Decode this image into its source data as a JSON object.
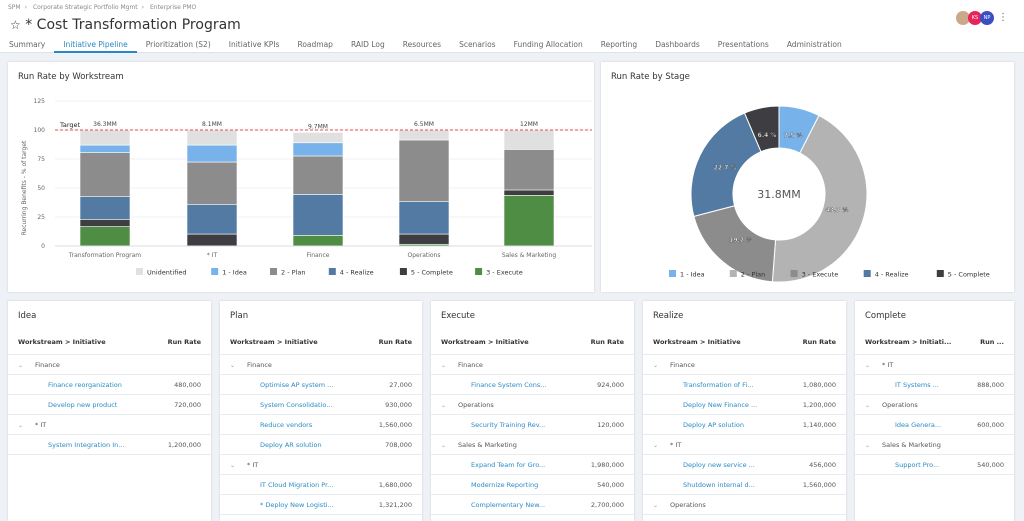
{
  "breadcrumb": [
    "SPM",
    "Corporate Strategic Portfolio Mgmt",
    "Enterprise PMO"
  ],
  "title": "* Cost Transformation Program",
  "tabs": [
    "Summary",
    "Initiative Pipeline",
    "Prioritization (S2)",
    "Initiative KPIs",
    "Roadmap",
    "RAID Log",
    "Resources",
    "Scenarios",
    "Funding Allocation",
    "Reporting",
    "Dashboards",
    "Presentations",
    "Administration"
  ],
  "active_tab": "Initiative Pipeline",
  "avatars": [
    {
      "label": "",
      "color": "#c9a98a"
    },
    {
      "label": "KS",
      "color": "#e8235a"
    },
    {
      "label": "NP",
      "color": "#3b4fc4"
    }
  ],
  "colors": {
    "Unidentified": "#e0e0e0",
    "1 - Idea": "#77b3ea",
    "2 - Plan": "#b3b3b3",
    "2 - Plan (bar)": "#8c8c8c",
    "3 - Execute": "#8c8c8c",
    "3 - Execute (bar)": "#4f8c44",
    "4 - Realize": "#537aa3",
    "5 - Complete": "#3d3d42",
    "target": "#e84c4c",
    "accent": "#2a86c4"
  },
  "chart_data": [
    {
      "type": "bar",
      "stacked": true,
      "title": "Run Rate by Workstream",
      "ylabel": "Recurring Benefits - % of target",
      "ylim": [
        0,
        125
      ],
      "yticks": [
        0,
        25,
        50,
        75,
        100,
        125
      ],
      "grid": true,
      "legend_position": "bottom",
      "target": {
        "label": "Target",
        "value": 100
      },
      "categories": [
        "Transformation Program",
        "* IT",
        "Finance",
        "Operations",
        "Sales & Marketing"
      ],
      "totals": [
        "36.3MM",
        "8.1MM",
        "9.7MM",
        "6.5MM",
        "12MM"
      ],
      "series": [
        {
          "name": "3 - Execute",
          "values": [
            16.7,
            0,
            9.2,
            1.5,
            43.7
          ]
        },
        {
          "name": "5 - Complete",
          "values": [
            6.3,
            10.3,
            0,
            8.8,
            4.6
          ]
        },
        {
          "name": "4 - Realize",
          "values": [
            19.5,
            25.3,
            35.3,
            27.9,
            0
          ]
        },
        {
          "name": "2 - Plan",
          "values": [
            38,
            36.8,
            33.1,
            53.2,
            35
          ]
        },
        {
          "name": "1 - Idea",
          "values": [
            6.5,
            14.6,
            11.4,
            0,
            0
          ]
        },
        {
          "name": "Unidentified",
          "values": [
            13,
            13,
            9,
            8.6,
            16.7
          ]
        }
      ],
      "legend": [
        "Unidentified",
        "1 - Idea",
        "2 - Plan",
        "4 - Realize",
        "5 - Complete",
        "3 - Execute"
      ]
    },
    {
      "type": "pie",
      "donut": true,
      "title": "Run Rate by Stage",
      "center_label": "31.8MM",
      "legend_position": "bottom",
      "slices": [
        {
          "name": "1 - Idea",
          "value": 7.5,
          "label": "7.5 %"
        },
        {
          "name": "2 - Plan",
          "value": 43.7,
          "label": "43.7 %"
        },
        {
          "name": "3 - Execute",
          "value": 19.7,
          "label": "19.7 %"
        },
        {
          "name": "4 - Realize",
          "value": 22.7,
          "label": "22.7 %"
        },
        {
          "name": "5 - Complete",
          "value": 6.4,
          "label": "6.4 %"
        }
      ]
    }
  ],
  "tables": [
    {
      "title": "Idea",
      "col1": "Workstream > Initiative",
      "col2": "Run Rate",
      "rows": [
        {
          "g": "Finance"
        },
        {
          "n": "Finance reorganization",
          "v": "480,000"
        },
        {
          "n": "Develop new product",
          "v": "720,000"
        },
        {
          "g": "* IT"
        },
        {
          "n": "System Integration In...",
          "v": "1,200,000"
        }
      ]
    },
    {
      "title": "Plan",
      "col1": "Workstream > Initiative",
      "col2": "Run Rate",
      "rows": [
        {
          "g": "Finance"
        },
        {
          "n": "Optimise AP system ...",
          "v": "27,000"
        },
        {
          "n": "System Consolidatio...",
          "v": "930,000"
        },
        {
          "n": "Reduce vendors",
          "v": "1,560,000"
        },
        {
          "n": "Deploy AR solution",
          "v": "708,000"
        },
        {
          "g": "* IT"
        },
        {
          "n": "IT Cloud Migration Pr...",
          "v": "1,680,000"
        },
        {
          "n": "* Deploy New Logisti...",
          "v": "1,321,200"
        }
      ]
    },
    {
      "title": "Execute",
      "col1": "Workstream > Initiative",
      "col2": "Run Rate",
      "rows": [
        {
          "g": "Finance"
        },
        {
          "n": "Finance System Cons...",
          "v": "924,000"
        },
        {
          "g": "Operations"
        },
        {
          "n": "Security Training Rev...",
          "v": "120,000"
        },
        {
          "g": "Sales & Marketing"
        },
        {
          "n": "Expand Team for Gro...",
          "v": "1,980,000"
        },
        {
          "n": "Modernize Reporting",
          "v": "540,000"
        },
        {
          "n": "Complementary New...",
          "v": "2,700,000"
        }
      ]
    },
    {
      "title": "Realize",
      "col1": "Workstream > Initiative",
      "col2": "Run Rate",
      "rows": [
        {
          "g": "Finance"
        },
        {
          "n": "Transformation of Fi...",
          "v": "1,080,000"
        },
        {
          "n": "Deploy New Finance ...",
          "v": "1,200,000"
        },
        {
          "n": "Deploy AP solution",
          "v": "1,140,000"
        },
        {
          "g": "* IT"
        },
        {
          "n": "Deploy new service ...",
          "v": "456,000"
        },
        {
          "n": "Shutdown internal d...",
          "v": "1,560,000"
        },
        {
          "g": "Operations"
        }
      ]
    },
    {
      "title": "Complete",
      "col1": "Workstream > Initiati...",
      "col2": "Run ...",
      "rows": [
        {
          "g": "* IT"
        },
        {
          "n": "IT Systems ...",
          "v": "888,000"
        },
        {
          "g": "Operations"
        },
        {
          "n": "Idea Genera...",
          "v": "600,000"
        },
        {
          "g": "Sales & Marketing"
        },
        {
          "n": "Support Pro...",
          "v": "540,000"
        }
      ]
    }
  ]
}
